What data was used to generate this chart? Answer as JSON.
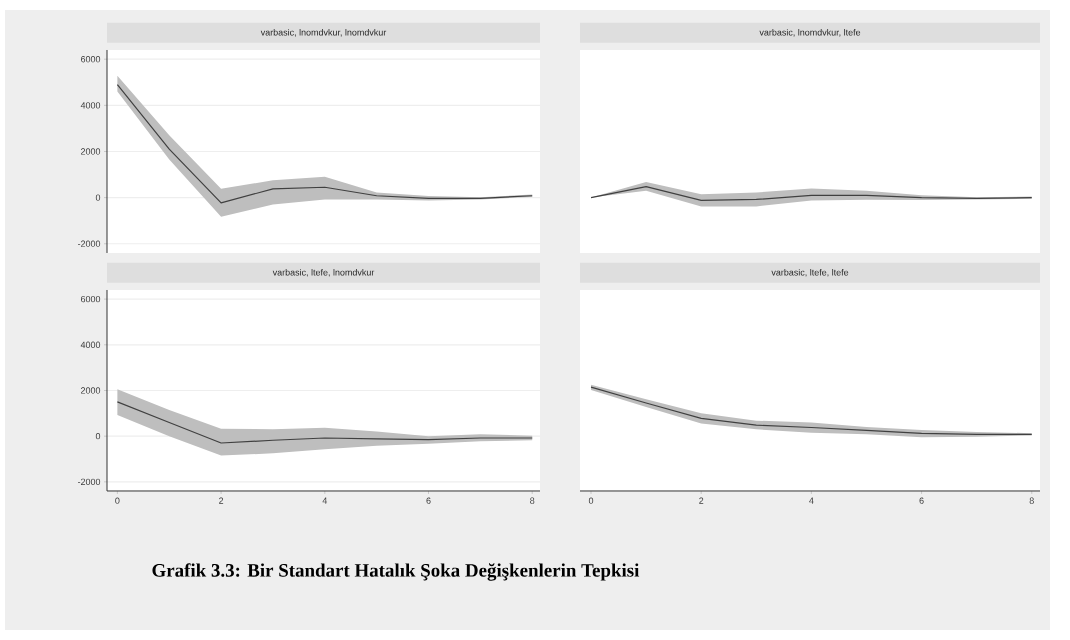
{
  "chart_data": [
    {
      "type": "line",
      "title": "varbasic, lnomdvkur, lnomdvkur",
      "x": [
        0,
        1,
        2,
        3,
        4,
        5,
        6,
        7,
        8
      ],
      "xlim": [
        -0.2,
        8.15
      ],
      "ylim": [
        -2400,
        6400
      ],
      "xticks": [
        0,
        2,
        4,
        6,
        8
      ],
      "yticks": [
        -2000,
        0,
        2000,
        4000,
        6000
      ],
      "grid": "y",
      "tick_labels": "y",
      "series": [
        {
          "color": "#404040",
          "values": [
            4900,
            2100,
            -230,
            380,
            450,
            80,
            -30,
            -30,
            80
          ],
          "lower": [
            4600,
            1650,
            -830,
            -300,
            -80,
            -80,
            -130,
            -80,
            30
          ],
          "upper": [
            5280,
            2700,
            380,
            750,
            900,
            220,
            70,
            20,
            130
          ]
        }
      ]
    },
    {
      "type": "line",
      "title": "varbasic, lnomdvkur, ltefe",
      "x": [
        0,
        1,
        2,
        3,
        4,
        5,
        6,
        7,
        8
      ],
      "xlim": [
        -0.2,
        8.15
      ],
      "ylim": [
        -2400,
        6400
      ],
      "xticks": [
        0,
        2,
        4,
        6,
        8
      ],
      "yticks": [
        -2000,
        0,
        2000,
        4000,
        6000
      ],
      "grid": "y",
      "tick_labels": false,
      "series": [
        {
          "color": "#404040",
          "values": [
            0,
            480,
            -120,
            -80,
            100,
            100,
            0,
            -30,
            0
          ],
          "lower": [
            0,
            300,
            -380,
            -380,
            -120,
            -90,
            -100,
            -80,
            -50
          ],
          "upper": [
            0,
            680,
            150,
            220,
            400,
            300,
            100,
            20,
            50
          ]
        }
      ]
    },
    {
      "type": "line",
      "title": "varbasic, ltefe, lnomdvkur",
      "x": [
        0,
        1,
        2,
        3,
        4,
        5,
        6,
        7,
        8
      ],
      "xlim": [
        -0.2,
        8.15
      ],
      "ylim": [
        -2400,
        6400
      ],
      "xticks": [
        0,
        2,
        4,
        6,
        8
      ],
      "yticks": [
        -2000,
        0,
        2000,
        4000,
        6000
      ],
      "grid": "y",
      "series": [
        {
          "color": "#404040",
          "values": [
            1500,
            600,
            -300,
            -180,
            -80,
            -120,
            -150,
            -80,
            -80
          ],
          "lower": [
            930,
            0,
            -850,
            -750,
            -570,
            -420,
            -330,
            -220,
            -180
          ],
          "upper": [
            2050,
            1150,
            330,
            300,
            370,
            200,
            0,
            80,
            20
          ]
        }
      ]
    },
    {
      "type": "line",
      "title": "varbasic, ltefe, ltefe",
      "x": [
        0,
        1,
        2,
        3,
        4,
        5,
        6,
        7,
        8
      ],
      "xlim": [
        -0.2,
        8.15
      ],
      "ylim": [
        -2400,
        6400
      ],
      "xticks": [
        0,
        2,
        4,
        6,
        8
      ],
      "yticks": [
        -2000,
        0,
        2000,
        4000,
        6000
      ],
      "grid": "y",
      "tick_labels": "x",
      "annotations": [
        "Grafik 3.3: Bir Standart Hatalık Şoka Değişkenlerin Tepkisi"
      ],
      "series": [
        {
          "color": "#404040",
          "values": [
            2150,
            1450,
            780,
            480,
            380,
            250,
            120,
            80,
            80
          ],
          "lower": [
            2020,
            1280,
            550,
            300,
            150,
            80,
            -50,
            -30,
            30
          ],
          "upper": [
            2250,
            1620,
            1000,
            680,
            600,
            400,
            270,
            180,
            130
          ]
        }
      ]
    }
  ]
}
